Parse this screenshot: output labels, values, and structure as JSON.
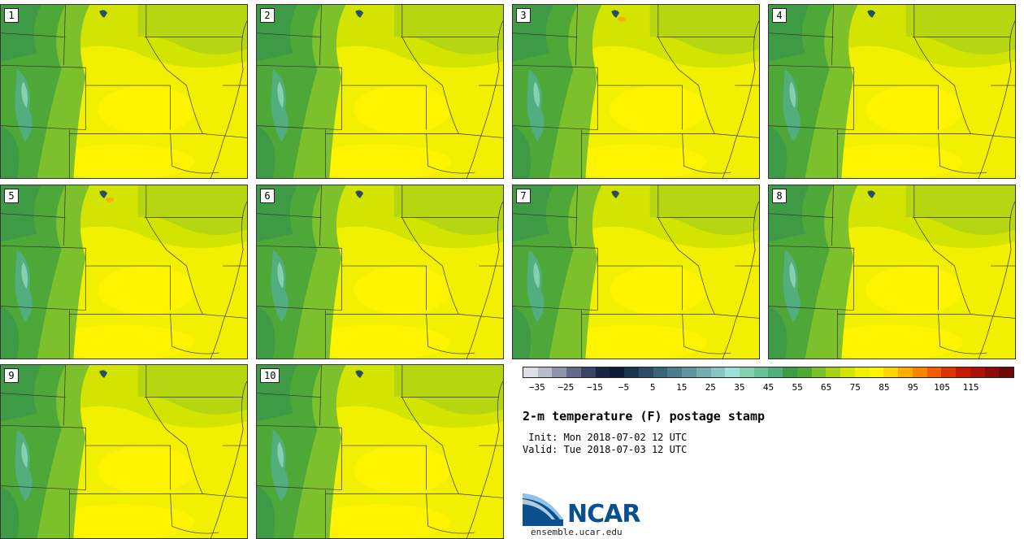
{
  "panels": [
    {
      "label": "1"
    },
    {
      "label": "2"
    },
    {
      "label": "3"
    },
    {
      "label": "4"
    },
    {
      "label": "5"
    },
    {
      "label": "6"
    },
    {
      "label": "7"
    },
    {
      "label": "8"
    },
    {
      "label": "9"
    },
    {
      "label": "10"
    }
  ],
  "colorbar": {
    "colors": [
      "#dcdfe6",
      "#b8bcc8",
      "#8f95a8",
      "#62698a",
      "#3b4468",
      "#1b2444",
      "#0c1a36",
      "#1a3450",
      "#2b4c66",
      "#3a6478",
      "#4d7c8c",
      "#60949e",
      "#74acb0",
      "#8ac4c2",
      "#9ee0d8",
      "#84d0b0",
      "#6ac096",
      "#52ae7e",
      "#3e9a44",
      "#4ea838",
      "#7cc02c",
      "#a8d018",
      "#d2e400",
      "#f0f000",
      "#fff400",
      "#ffd400",
      "#ffac00",
      "#f98400",
      "#f05c00",
      "#d83800",
      "#c41c04",
      "#a81208",
      "#8a0c08",
      "#6e0806"
    ],
    "tick_labels": [
      "−35",
      "−25",
      "−15",
      "−5",
      "5",
      "15",
      "25",
      "35",
      "45",
      "55",
      "65",
      "75",
      "85",
      "95",
      "105",
      "115"
    ]
  },
  "title": "2-m temperature (F) postage stamp",
  "init": " Init: Mon 2018-07-02 12 UTC",
  "valid": "Valid: Tue 2018-07-03 12 UTC",
  "logo": {
    "text": "NCAR",
    "colors": {
      "blue": "#0a4f8f",
      "light": "#5aa0d8"
    }
  },
  "url": "ensemble.ucar.edu"
}
